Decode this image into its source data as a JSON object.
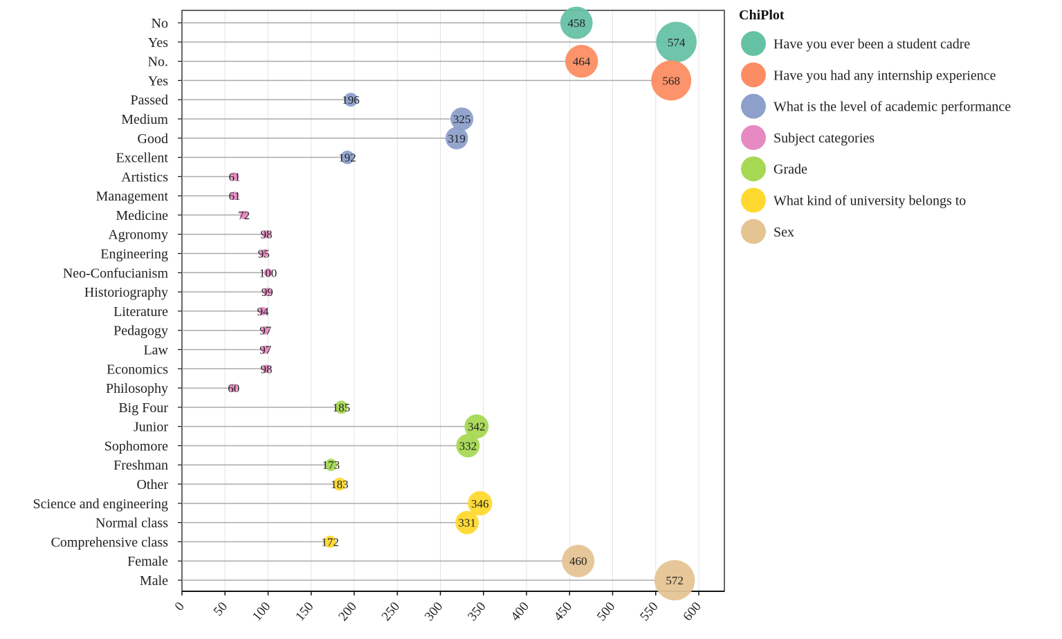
{
  "chart_data": {
    "type": "scatter",
    "subtype": "lollipop-bubble",
    "title": "",
    "xlabel": "",
    "ylabel": "",
    "xlim": [
      0,
      600
    ],
    "xticks": [
      0,
      50,
      100,
      150,
      200,
      250,
      300,
      350,
      400,
      450,
      500,
      550,
      600
    ],
    "grid": true,
    "legend": {
      "title": "ChiPlot",
      "placement": "right",
      "entries": [
        {
          "name": "Have you ever been a student cadre",
          "color": "#66c2a5"
        },
        {
          "name": "Have you had any internship experience",
          "color": "#fc8d62"
        },
        {
          "name": "What is the level of academic performance",
          "color": "#8da0cb"
        },
        {
          "name": "Subject categories",
          "color": "#e78ac3"
        },
        {
          "name": "Grade",
          "color": "#a6d854"
        },
        {
          "name": "What kind of university belongs to",
          "color": "#ffd92f"
        },
        {
          "name": "Sex",
          "color": "#e5c494"
        }
      ]
    },
    "points": [
      {
        "label": "No",
        "value": 458,
        "group": 0
      },
      {
        "label": "Yes",
        "value": 574,
        "group": 0
      },
      {
        "label": "No.",
        "value": 464,
        "group": 1
      },
      {
        "label": "Yes",
        "value": 568,
        "group": 1
      },
      {
        "label": "Passed",
        "value": 196,
        "group": 2
      },
      {
        "label": "Medium",
        "value": 325,
        "group": 2
      },
      {
        "label": "Good",
        "value": 319,
        "group": 2
      },
      {
        "label": "Excellent",
        "value": 192,
        "group": 2
      },
      {
        "label": "Artistics",
        "value": 61,
        "group": 3
      },
      {
        "label": "Management",
        "value": 61,
        "group": 3
      },
      {
        "label": "Medicine",
        "value": 72,
        "group": 3
      },
      {
        "label": "Agronomy",
        "value": 98,
        "group": 3
      },
      {
        "label": "Engineering",
        "value": 95,
        "group": 3
      },
      {
        "label": "Neo-Confucianism",
        "value": 100,
        "group": 3
      },
      {
        "label": "Historiography",
        "value": 99,
        "group": 3
      },
      {
        "label": "Literature",
        "value": 94,
        "group": 3
      },
      {
        "label": "Pedagogy",
        "value": 97,
        "group": 3
      },
      {
        "label": "Law",
        "value": 97,
        "group": 3
      },
      {
        "label": "Economics",
        "value": 98,
        "group": 3
      },
      {
        "label": "Philosophy",
        "value": 60,
        "group": 3
      },
      {
        "label": "Big Four",
        "value": 185,
        "group": 4
      },
      {
        "label": "Junior",
        "value": 342,
        "group": 4
      },
      {
        "label": "Sophomore",
        "value": 332,
        "group": 4
      },
      {
        "label": "Freshman",
        "value": 173,
        "group": 4
      },
      {
        "label": "Other",
        "value": 183,
        "group": 5
      },
      {
        "label": "Science and engineering",
        "value": 346,
        "group": 5
      },
      {
        "label": "Normal class",
        "value": 331,
        "group": 5
      },
      {
        "label": "Comprehensive class",
        "value": 172,
        "group": 5
      },
      {
        "label": "Female",
        "value": 460,
        "group": 6
      },
      {
        "label": "Male",
        "value": 572,
        "group": 6
      }
    ]
  }
}
